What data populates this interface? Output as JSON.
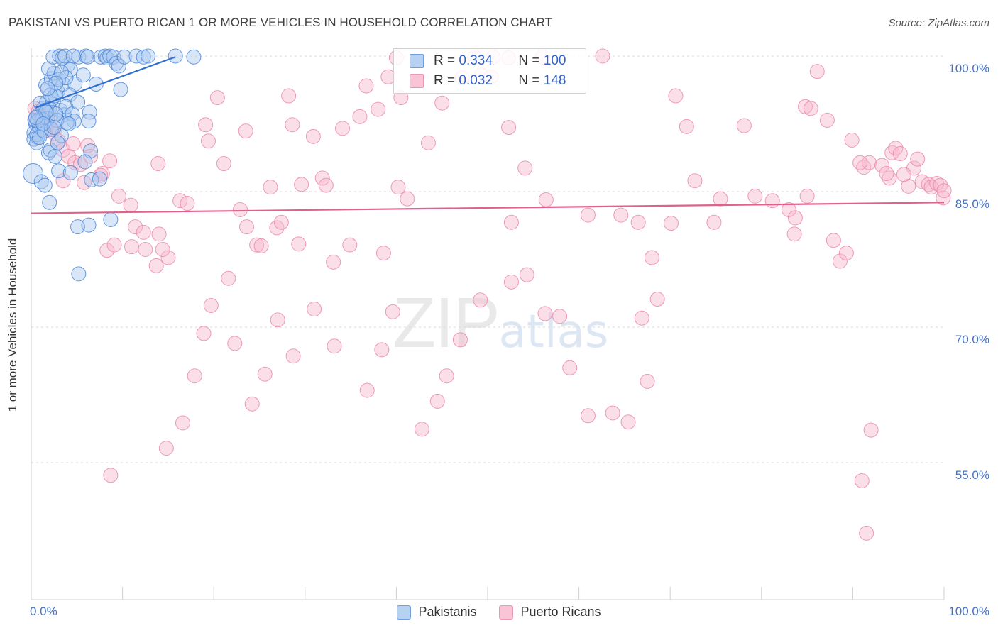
{
  "page": {
    "title": "PAKISTANI VS PUERTO RICAN 1 OR MORE VEHICLES IN HOUSEHOLD CORRELATION CHART",
    "source": "Source: ZipAtlas.com",
    "watermark_zip": "ZIP",
    "watermark_atlas": "atlas"
  },
  "legend": {
    "pakistanis": {
      "r_label": "R =",
      "r_value": "0.334",
      "n_label": "N =",
      "n_value": "100"
    },
    "puerto_ricans": {
      "r_label": "R =",
      "r_value": "0.032",
      "n_label": "N =",
      "n_value": "148"
    }
  },
  "chart_data": {
    "type": "scatter",
    "title": "PAKISTANI VS PUERTO RICAN 1 OR MORE VEHICLES IN HOUSEHOLD CORRELATION CHART",
    "xlabel": "",
    "ylabel": "1 or more Vehicles in Household",
    "xlim": [
      0,
      100
    ],
    "ylim": [
      40,
      101
    ],
    "x_tick_labels": [
      "0.0%",
      "100.0%"
    ],
    "y_ticks": [
      {
        "value": 100,
        "label": "100.0%"
      },
      {
        "value": 85,
        "label": "85.0%"
      },
      {
        "value": 70,
        "label": "70.0%"
      },
      {
        "value": 55,
        "label": "55.0%"
      }
    ],
    "legend_position": "top-center",
    "colors": {
      "pakistanis_fill": "#a9c8f0",
      "pakistanis_edge": "#4a86d8",
      "pakistanis_line": "#2f6fd0",
      "puerto_ricans_fill": "#f7b9cd",
      "puerto_ricans_edge": "#ea8aab",
      "puerto_ricans_line": "#e0628c",
      "tick_label": "#4472c4",
      "grid": "#d9d9d9"
    },
    "series": [
      {
        "name": "Pakistanis",
        "trend": {
          "x": [
            0.5,
            15.8
          ],
          "y": [
            94.3,
            99.9
          ]
        },
        "points": [
          [
            0.3,
            91.5
          ],
          [
            0.5,
            92.5
          ],
          [
            0.3,
            90.8
          ],
          [
            0.7,
            91.0
          ],
          [
            0.9,
            92.2
          ],
          [
            1.1,
            92.4
          ],
          [
            0.6,
            91.3
          ],
          [
            1.2,
            91.9
          ],
          [
            1.4,
            92.8
          ],
          [
            0.4,
            92.9
          ],
          [
            0.8,
            93.5
          ],
          [
            1.3,
            94.2
          ],
          [
            1.0,
            94.8
          ],
          [
            1.7,
            94.9
          ],
          [
            2.0,
            94.2
          ],
          [
            2.3,
            95.3
          ],
          [
            2.6,
            95.6
          ],
          [
            2.9,
            96.1
          ],
          [
            3.2,
            94.0
          ],
          [
            3.6,
            93.5
          ],
          [
            1.6,
            96.8
          ],
          [
            2.2,
            97.5
          ],
          [
            2.5,
            98.1
          ],
          [
            3.5,
            96.9
          ],
          [
            1.9,
            98.6
          ],
          [
            3.0,
            97.4
          ],
          [
            4.0,
            99.0
          ],
          [
            4.3,
            98.5
          ],
          [
            4.8,
            96.9
          ],
          [
            2.4,
            99.9
          ],
          [
            3.1,
            100.0
          ],
          [
            3.4,
            99.8
          ],
          [
            3.7,
            100.0
          ],
          [
            5.2,
            99.9
          ],
          [
            6.0,
            100.0
          ],
          [
            6.2,
            99.9
          ],
          [
            7.6,
            99.9
          ],
          [
            8.1,
            100.0
          ],
          [
            8.3,
            99.8
          ],
          [
            8.6,
            100.0
          ],
          [
            9.0,
            99.9
          ],
          [
            9.3,
            99.2
          ],
          [
            9.6,
            98.9
          ],
          [
            10.2,
            99.9
          ],
          [
            11.5,
            100.0
          ],
          [
            12.3,
            99.9
          ],
          [
            12.8,
            100.0
          ],
          [
            15.8,
            100.0
          ],
          [
            17.8,
            99.9
          ],
          [
            9.8,
            96.3
          ],
          [
            4.2,
            95.7
          ],
          [
            3.8,
            94.4
          ],
          [
            4.5,
            93.6
          ],
          [
            5.1,
            94.9
          ],
          [
            6.4,
            93.8
          ],
          [
            4.7,
            92.8
          ],
          [
            3.9,
            92.6
          ],
          [
            2.8,
            92.9
          ],
          [
            1.5,
            94.0
          ],
          [
            1.8,
            93.1
          ],
          [
            3.3,
            91.2
          ],
          [
            4.1,
            92.5
          ],
          [
            1.9,
            89.3
          ],
          [
            2.1,
            89.6
          ],
          [
            2.6,
            88.9
          ],
          [
            2.9,
            90.4
          ],
          [
            6.3,
            92.8
          ],
          [
            6.5,
            89.5
          ],
          [
            5.9,
            88.3
          ],
          [
            3.0,
            87.3
          ],
          [
            4.3,
            87.1
          ],
          [
            0.2,
            87.0
          ],
          [
            1.1,
            86.1
          ],
          [
            1.5,
            85.7
          ],
          [
            6.6,
            86.3
          ],
          [
            7.5,
            86.4
          ],
          [
            2.0,
            83.8
          ],
          [
            5.1,
            81.1
          ],
          [
            6.3,
            81.3
          ],
          [
            8.7,
            81.9
          ],
          [
            5.2,
            75.9
          ],
          [
            1.2,
            93.0
          ],
          [
            2.7,
            93.6
          ],
          [
            0.6,
            90.4
          ],
          [
            0.9,
            91.0
          ],
          [
            1.4,
            91.7
          ],
          [
            2.2,
            91.9
          ],
          [
            2.5,
            92.1
          ],
          [
            0.7,
            92.8
          ],
          [
            1.6,
            93.8
          ],
          [
            5.7,
            97.9
          ],
          [
            3.8,
            97.6
          ],
          [
            2.1,
            95.7
          ],
          [
            7.1,
            96.9
          ],
          [
            4.6,
            100.0
          ],
          [
            3.3,
            98.2
          ],
          [
            2.7,
            97.0
          ],
          [
            1.8,
            96.4
          ],
          [
            0.5,
            93.2
          ],
          [
            1.3,
            92.5
          ]
        ]
      },
      {
        "name": "Puerto Ricans",
        "trend": {
          "x": [
            0,
            100
          ],
          "y": [
            82.6,
            83.8
          ]
        },
        "points": [
          [
            0.4,
            94.2
          ],
          [
            0.8,
            93.9
          ],
          [
            1.4,
            93.5
          ],
          [
            1.9,
            92.6
          ],
          [
            2.3,
            91.9
          ],
          [
            2.6,
            91.4
          ],
          [
            3.0,
            90.6
          ],
          [
            3.5,
            89.6
          ],
          [
            4.1,
            88.9
          ],
          [
            4.8,
            88.2
          ],
          [
            0.6,
            92.9
          ],
          [
            1.1,
            92.3
          ],
          [
            1.6,
            91.8
          ],
          [
            2.0,
            93.1
          ],
          [
            4.6,
            90.3
          ],
          [
            5.4,
            88.0
          ],
          [
            6.2,
            90.1
          ],
          [
            6.5,
            88.9
          ],
          [
            7.8,
            87.0
          ],
          [
            8.6,
            88.4
          ],
          [
            3.5,
            86.2
          ],
          [
            5.8,
            86.0
          ],
          [
            9.6,
            84.5
          ],
          [
            10.9,
            83.5
          ],
          [
            11.4,
            81.1
          ],
          [
            12.3,
            80.5
          ],
          [
            14.0,
            80.3
          ],
          [
            11.0,
            78.9
          ],
          [
            12.5,
            78.6
          ],
          [
            13.7,
            76.8
          ],
          [
            15.0,
            77.7
          ],
          [
            14.4,
            78.6
          ],
          [
            8.3,
            78.5
          ],
          [
            9.1,
            79.1
          ],
          [
            13.9,
            88.1
          ],
          [
            16.3,
            84.0
          ],
          [
            17.1,
            83.7
          ],
          [
            19.1,
            92.4
          ],
          [
            19.4,
            90.6
          ],
          [
            20.4,
            95.4
          ],
          [
            21.1,
            88.1
          ],
          [
            23.5,
            91.7
          ],
          [
            22.9,
            83.0
          ],
          [
            23.6,
            81.1
          ],
          [
            24.7,
            79.1
          ],
          [
            25.2,
            79.0
          ],
          [
            26.2,
            85.5
          ],
          [
            26.9,
            81.0
          ],
          [
            27.4,
            81.6
          ],
          [
            28.2,
            95.6
          ],
          [
            28.6,
            92.4
          ],
          [
            29.3,
            79.2
          ],
          [
            29.6,
            85.8
          ],
          [
            30.9,
            91.1
          ],
          [
            31.9,
            86.5
          ],
          [
            32.3,
            85.7
          ],
          [
            33.1,
            77.2
          ],
          [
            34.1,
            92.0
          ],
          [
            34.9,
            79.1
          ],
          [
            36.0,
            93.3
          ],
          [
            36.7,
            96.7
          ],
          [
            38.0,
            94.1
          ],
          [
            39.1,
            97.7
          ],
          [
            38.6,
            78.2
          ],
          [
            40.2,
            85.5
          ],
          [
            40.5,
            95.4
          ],
          [
            41.2,
            84.2
          ],
          [
            40.0,
            99.8
          ],
          [
            43.5,
            90.4
          ],
          [
            45.0,
            94.8
          ],
          [
            47.2,
            97.6
          ],
          [
            49.3,
            97.9
          ],
          [
            50.4,
            97.7
          ],
          [
            48.6,
            99.9
          ],
          [
            50.6,
            99.9
          ],
          [
            52.3,
            99.8
          ],
          [
            56.0,
            99.9
          ],
          [
            62.6,
            100.0
          ],
          [
            54.1,
            87.6
          ],
          [
            56.4,
            84.1
          ],
          [
            52.3,
            92.1
          ],
          [
            52.6,
            81.6
          ],
          [
            61.0,
            82.4
          ],
          [
            64.6,
            82.4
          ],
          [
            66.5,
            81.6
          ],
          [
            68.0,
            77.7
          ],
          [
            70.6,
            95.6
          ],
          [
            71.8,
            92.2
          ],
          [
            72.7,
            86.2
          ],
          [
            74.8,
            81.6
          ],
          [
            78.1,
            92.3
          ],
          [
            79.3,
            84.5
          ],
          [
            81.2,
            84.0
          ],
          [
            83.0,
            83.0
          ],
          [
            83.6,
            80.3
          ],
          [
            84.8,
            94.4
          ],
          [
            85.4,
            94.2
          ],
          [
            86.1,
            98.3
          ],
          [
            87.9,
            79.6
          ],
          [
            88.6,
            77.3
          ],
          [
            89.3,
            78.2
          ],
          [
            91.2,
            87.7
          ],
          [
            91.8,
            88.2
          ],
          [
            93.2,
            87.9
          ],
          [
            94.3,
            89.3
          ],
          [
            94.7,
            89.8
          ],
          [
            95.2,
            89.2
          ],
          [
            96.7,
            87.6
          ],
          [
            97.1,
            88.6
          ],
          [
            97.6,
            86.1
          ],
          [
            98.3,
            85.8
          ],
          [
            98.6,
            85.5
          ],
          [
            99.2,
            85.9
          ],
          [
            99.6,
            85.7
          ],
          [
            99.9,
            84.3
          ],
          [
            100.0,
            85.1
          ],
          [
            96.1,
            85.6
          ],
          [
            95.6,
            86.9
          ],
          [
            94.0,
            86.5
          ],
          [
            93.7,
            87.0
          ],
          [
            90.8,
            88.2
          ],
          [
            89.9,
            90.7
          ],
          [
            87.2,
            92.9
          ],
          [
            85.0,
            84.5
          ],
          [
            83.7,
            82.1
          ],
          [
            75.5,
            84.2
          ],
          [
            70.1,
            81.5
          ],
          [
            68.6,
            73.1
          ],
          [
            67.5,
            64.0
          ],
          [
            66.9,
            71.0
          ],
          [
            65.4,
            59.5
          ],
          [
            63.7,
            60.5
          ],
          [
            61.0,
            60.2
          ],
          [
            59.0,
            65.5
          ],
          [
            57.9,
            71.2
          ],
          [
            56.3,
            71.5
          ],
          [
            54.3,
            75.8
          ],
          [
            52.6,
            75.0
          ],
          [
            49.2,
            73.0
          ],
          [
            47.0,
            68.6
          ],
          [
            45.5,
            64.6
          ],
          [
            44.5,
            61.8
          ],
          [
            42.8,
            58.7
          ],
          [
            39.6,
            71.7
          ],
          [
            38.4,
            67.5
          ],
          [
            36.8,
            63.0
          ],
          [
            33.2,
            67.9
          ],
          [
            31.0,
            72.0
          ],
          [
            28.7,
            66.8
          ],
          [
            27.0,
            70.8
          ],
          [
            25.6,
            64.8
          ],
          [
            24.2,
            61.5
          ],
          [
            22.3,
            68.2
          ],
          [
            21.6,
            75.4
          ],
          [
            19.7,
            72.4
          ],
          [
            18.9,
            69.3
          ],
          [
            17.9,
            64.6
          ],
          [
            16.6,
            59.4
          ],
          [
            14.8,
            56.6
          ],
          [
            8.7,
            53.6
          ],
          [
            91.0,
            53.0
          ],
          [
            91.5,
            47.2
          ],
          [
            92.0,
            58.6
          ],
          [
            7.6,
            86.8
          ]
        ]
      }
    ]
  }
}
